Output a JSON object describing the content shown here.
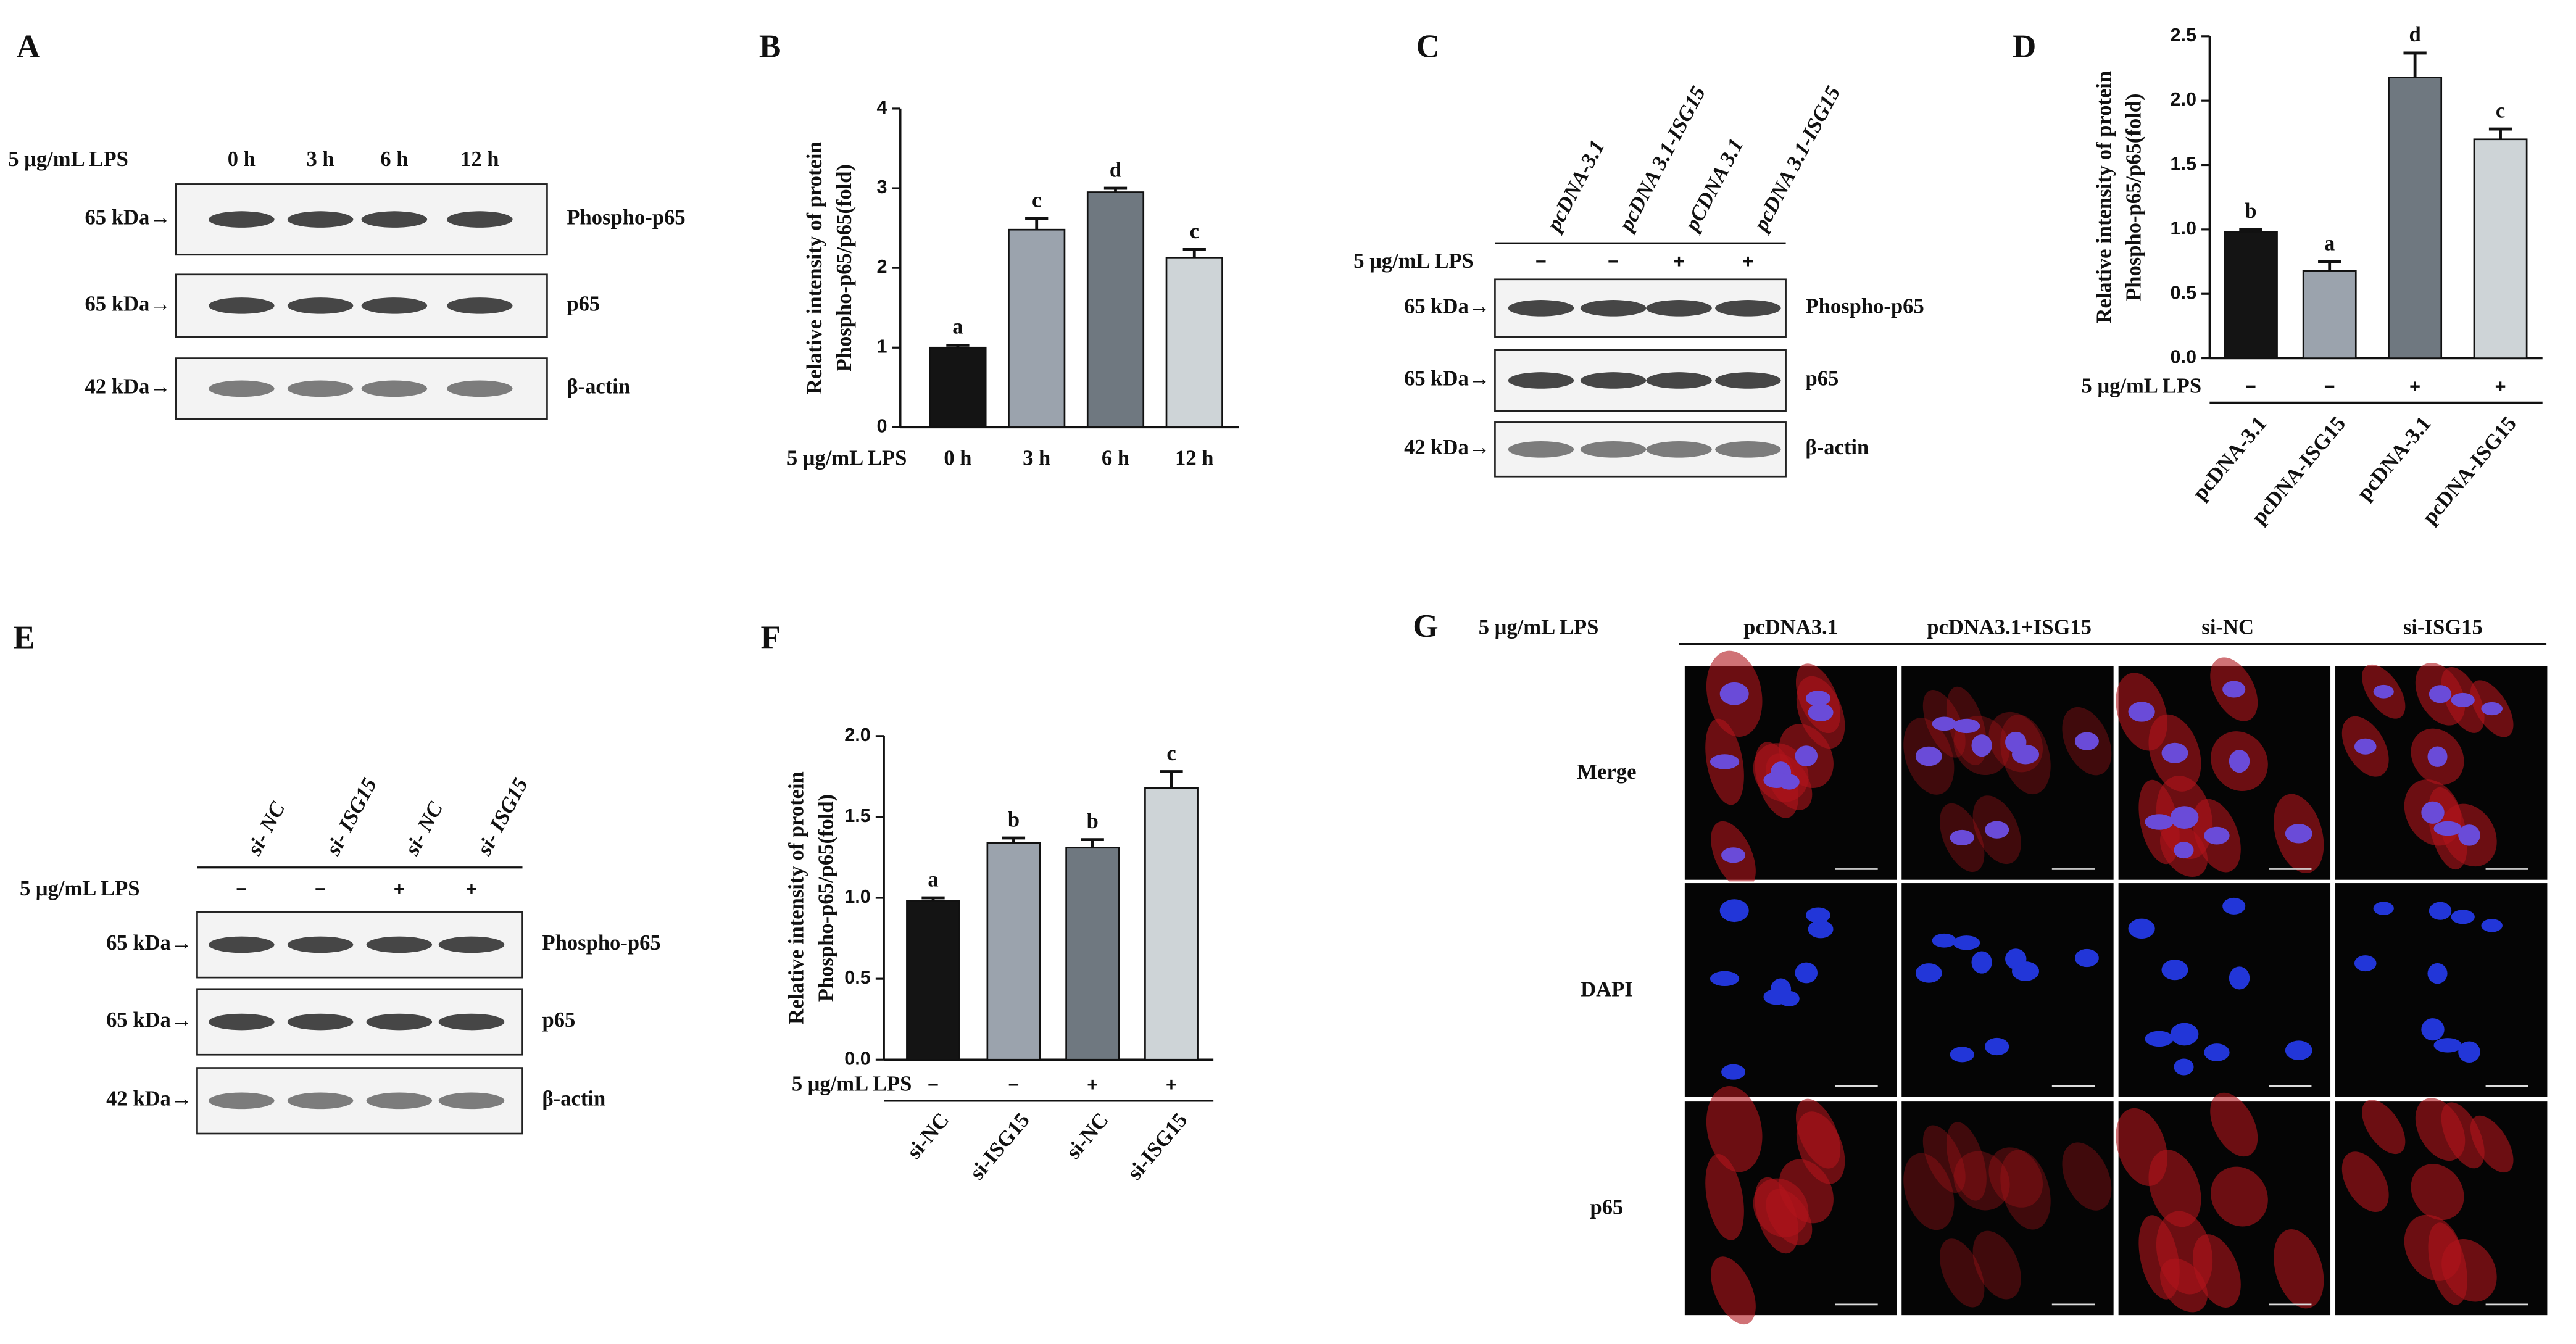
{
  "panel_labels": [
    "A",
    "B",
    "C",
    "D",
    "E",
    "F",
    "G"
  ],
  "blot_a": {
    "treatment": "5 μg/mL LPS",
    "lanes": [
      "0 h",
      "3 h",
      "6 h",
      "12 h"
    ],
    "rows": [
      {
        "marker": "65 kDa→",
        "protein": "Phospho-p65"
      },
      {
        "marker": "65 kDa→",
        "protein": "p65"
      },
      {
        "marker": "42 kDa→",
        "protein": "β-actin"
      }
    ]
  },
  "blot_c": {
    "treatment": "5 μg/mL LPS",
    "lanes": [
      "pcDNA-3.1",
      "pcDNA 3.1-ISG15",
      "pCDNA 3.1",
      "pcDNA 3.1-ISG15"
    ],
    "lps": [
      "−",
      "−",
      "+",
      "+"
    ],
    "rows": [
      {
        "marker": "65 kDa→",
        "protein": "Phospho-p65"
      },
      {
        "marker": "65 kDa→",
        "protein": "p65"
      },
      {
        "marker": "42 kDa→",
        "protein": "β-actin"
      }
    ]
  },
  "blot_e": {
    "treatment": "5 μg/mL LPS",
    "lanes": [
      "si- NC",
      "si- ISG15",
      "si- NC",
      "si- ISG15"
    ],
    "lps": [
      "−",
      "−",
      "+",
      "+"
    ],
    "rows": [
      {
        "marker": "65 kDa→",
        "protein": "Phospho-p65"
      },
      {
        "marker": "65 kDa→",
        "protein": "p65"
      },
      {
        "marker": "42 kDa→",
        "protein": "β-actin"
      }
    ]
  },
  "chart_data": [
    {
      "type": "bar",
      "ylabel": [
        "Relative intensity of protein",
        "Phospho-p65/p65(fold)"
      ],
      "treatment": "5 μg/mL LPS",
      "categories": [
        "0 h",
        "3 h",
        "6 h",
        "12 h"
      ],
      "values": [
        1.0,
        2.48,
        2.95,
        2.13
      ],
      "errors": [
        0.03,
        0.14,
        0.05,
        0.1
      ],
      "letters": [
        "a",
        "c",
        "d",
        "c"
      ],
      "colors": [
        "#141414",
        "#9ba3ad",
        "#6f7880",
        "#ced4d7"
      ],
      "ylim": [
        0,
        4
      ],
      "yticks": [
        0,
        1,
        2,
        3,
        4
      ]
    },
    {
      "type": "bar",
      "ylabel": [
        "Relative intensity of protein",
        "Phospho-p65/p65(fold)"
      ],
      "treatment": "5 μg/mL LPS",
      "lps": [
        "−",
        "−",
        "+",
        "+"
      ],
      "categories": [
        "pcDNA-3.1",
        "pcDNA-ISG15",
        "pcDNA-3.1",
        "pcDNA-ISG15"
      ],
      "values": [
        0.98,
        0.68,
        2.18,
        1.7
      ],
      "errors": [
        0.02,
        0.07,
        0.19,
        0.08
      ],
      "letters": [
        "b",
        "a",
        "d",
        "c"
      ],
      "colors": [
        "#141414",
        "#9ba3ad",
        "#6f7880",
        "#ced4d7"
      ],
      "ylim": [
        0,
        2.5
      ],
      "yticks": [
        {
          "value": 0,
          "label": "0.0"
        },
        0.5,
        {
          "value": 1,
          "label": "1.0"
        },
        1.5,
        {
          "value": 2,
          "label": "2.0"
        },
        2.5
      ]
    },
    {
      "type": "bar",
      "ylabel": [
        "Relative intensity of protein",
        "Phospho-p65/p65(fold)"
      ],
      "treatment": "5 μg/mL LPS",
      "lps": [
        "−",
        "−",
        "+",
        "+"
      ],
      "categories": [
        "si-NC",
        "si-ISG15",
        "si-NC",
        "si-ISG15"
      ],
      "values": [
        0.98,
        1.34,
        1.31,
        1.68
      ],
      "errors": [
        0.02,
        0.03,
        0.05,
        0.1
      ],
      "letters": [
        "a",
        "b",
        "b",
        "c"
      ],
      "colors": [
        "#141414",
        "#9ba3ad",
        "#6f7880",
        "#ced4d7"
      ],
      "ylim": [
        0,
        2
      ],
      "yticks": [
        {
          "value": 0,
          "label": "0.0"
        },
        0.5,
        {
          "value": 1,
          "label": "1.0"
        },
        1.5,
        {
          "value": 2,
          "label": "2.0"
        }
      ]
    }
  ],
  "imaging": {
    "treatment": "5 μg/mL LPS",
    "columns": [
      "pcDNA3.1",
      "pcDNA3.1+ISG15",
      "si-NC",
      "si-ISG15"
    ],
    "rows": [
      "Merge",
      "DAPI",
      "p65"
    ]
  }
}
